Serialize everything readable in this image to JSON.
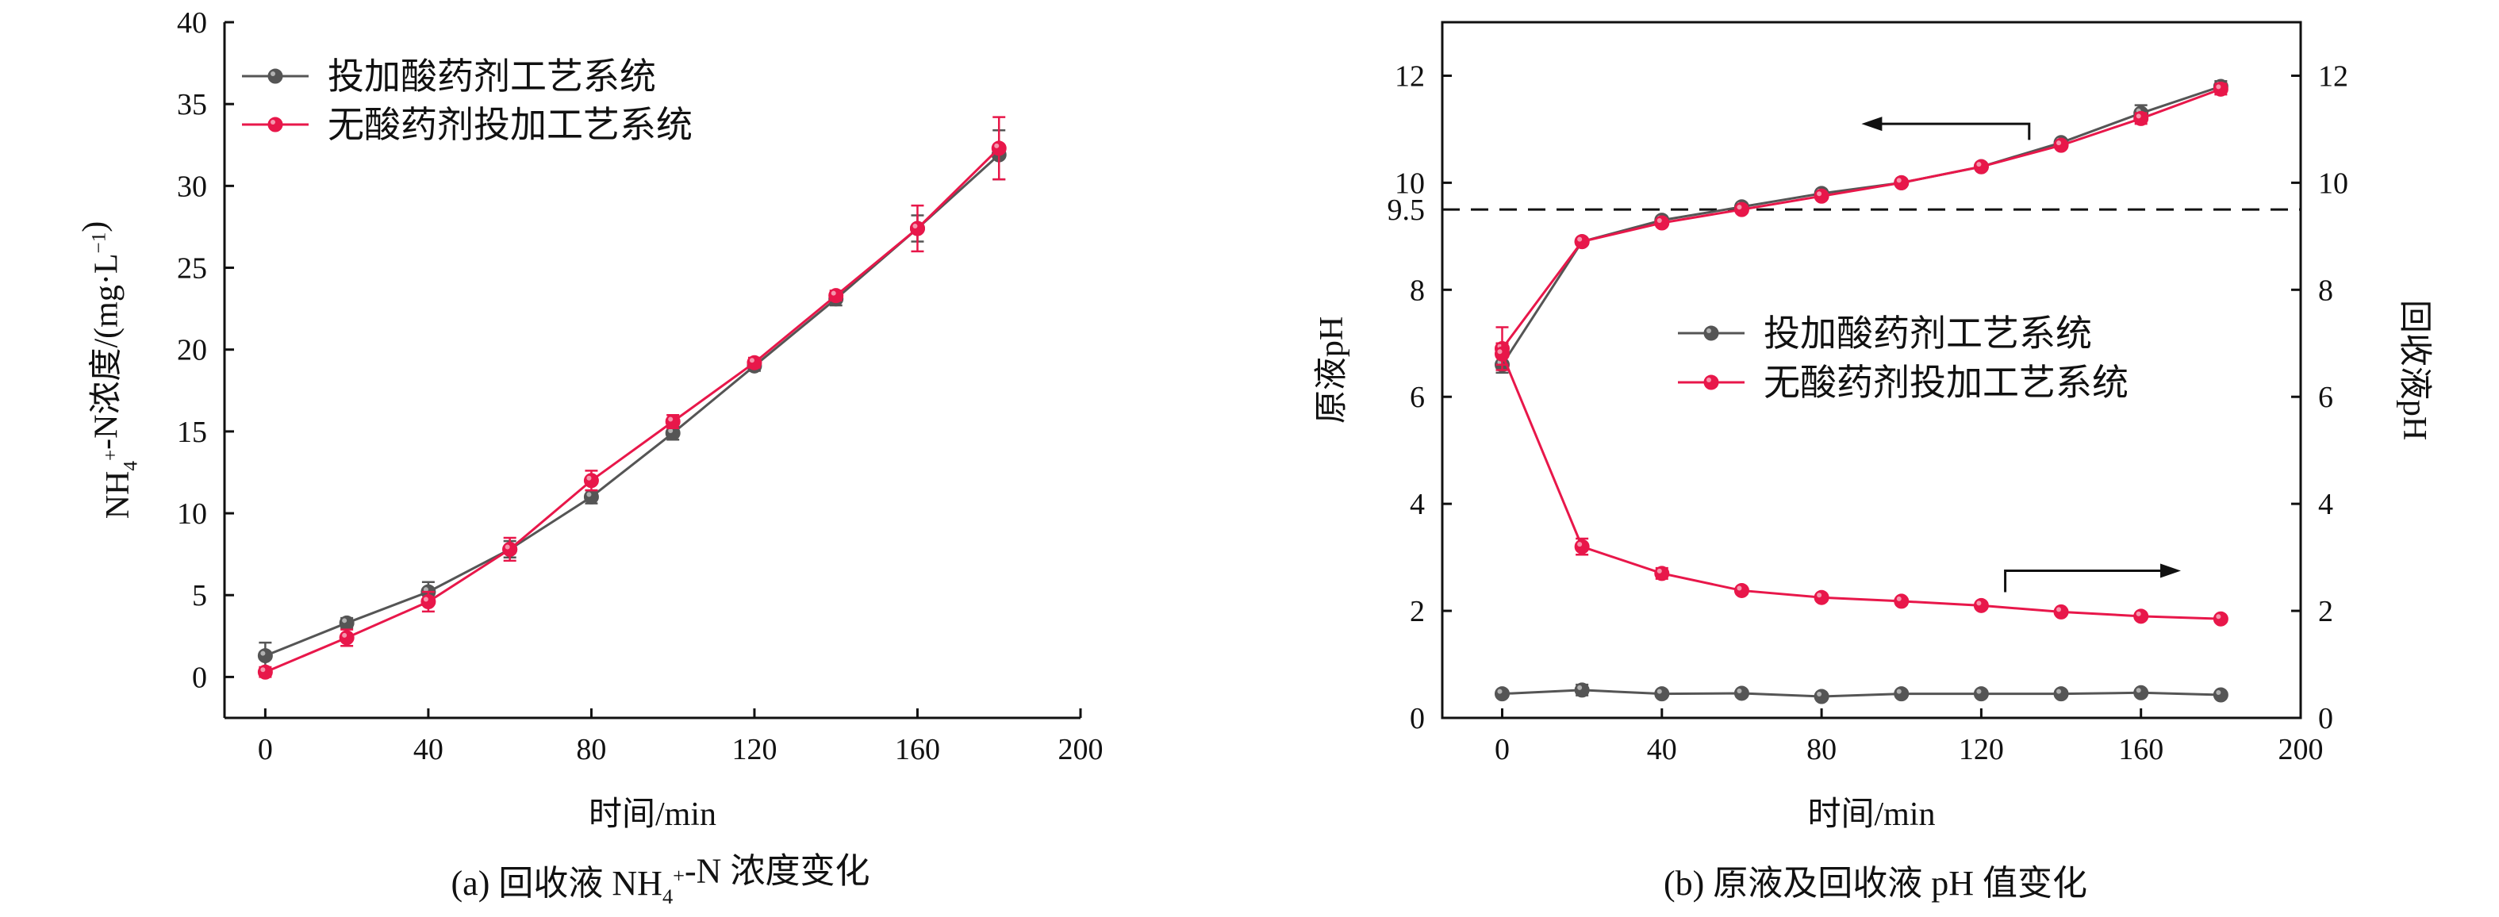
{
  "chart_data": [
    {
      "type": "line",
      "caption": "(a) 回收液 NH4+-N 浓度变化",
      "xlabel": "时间/min",
      "ylabel": "NH4+-N浓度/(mg·L−1)",
      "xlim": [
        -10,
        200
      ],
      "ylim": [
        -2.5,
        40
      ],
      "xticks": [
        0,
        40,
        80,
        120,
        160,
        200
      ],
      "yticks": [
        0,
        5,
        10,
        15,
        20,
        25,
        30,
        35,
        40
      ],
      "legend_position": "top-left",
      "x": [
        0,
        20,
        40,
        60,
        80,
        100,
        120,
        140,
        160,
        180
      ],
      "series": [
        {
          "name": "投加酸药剂工艺系统",
          "color": "#555555",
          "values": [
            1.3,
            3.3,
            5.2,
            7.8,
            11.0,
            14.9,
            19.0,
            23.1,
            27.4,
            31.9
          ],
          "errors": [
            0.8,
            0.3,
            0.6,
            0.5,
            0.4,
            0.4,
            0.3,
            0.4,
            0.8,
            1.5
          ]
        },
        {
          "name": "无酸药剂投加工艺系统",
          "color": "#e8174a",
          "values": [
            0.3,
            2.4,
            4.6,
            7.8,
            12.0,
            15.6,
            19.2,
            23.3,
            27.4,
            32.3
          ],
          "errors": [
            0.3,
            0.5,
            0.6,
            0.7,
            0.6,
            0.4,
            0.3,
            0.3,
            1.4,
            1.9
          ]
        }
      ]
    },
    {
      "type": "line",
      "caption": "(b) 原液及回收液 pH 值变化",
      "xlabel": "时间/min",
      "ylabel_left": "原液pH",
      "ylabel_right": "回收液pH",
      "xlim": [
        -15,
        200
      ],
      "ylim": [
        0,
        13
      ],
      "xticks": [
        0,
        40,
        80,
        120,
        160,
        200
      ],
      "yticks": [
        0,
        2,
        4,
        6,
        8,
        10,
        12
      ],
      "extra_tick_label": "9.5",
      "reference_line": 9.5,
      "legend_position": "center",
      "x": [
        0,
        20,
        40,
        60,
        80,
        100,
        120,
        140,
        160,
        180
      ],
      "series": [
        {
          "name": "投加酸药剂工艺系统",
          "group": "原液",
          "color": "#555555",
          "values": [
            6.6,
            8.9,
            9.3,
            9.55,
            9.8,
            10.0,
            10.3,
            10.75,
            11.3,
            11.8
          ],
          "errors": [
            0.15,
            0.05,
            0.05,
            0.05,
            0.05,
            0.05,
            0.05,
            0.05,
            0.15,
            0.1
          ]
        },
        {
          "name": "无酸药剂投加工艺系统",
          "group": "原液",
          "color": "#e8174a",
          "values": [
            6.9,
            8.9,
            9.25,
            9.5,
            9.75,
            10.0,
            10.3,
            10.7,
            11.2,
            11.75
          ],
          "errors": [
            0.4,
            0.05,
            0.05,
            0.05,
            0.05,
            0.05,
            0.05,
            0.05,
            0.1,
            0.1
          ]
        },
        {
          "group": "回收液",
          "color": "#555555",
          "values": [
            0.45,
            0.52,
            0.45,
            0.46,
            0.4,
            0.45,
            0.45,
            0.45,
            0.47,
            0.43
          ],
          "errors": [
            0.03,
            0.1,
            0.03,
            0.03,
            0.03,
            0.03,
            0.03,
            0.03,
            0.03,
            0.03
          ]
        },
        {
          "group": "回收液",
          "color": "#e8174a",
          "values": [
            6.8,
            3.2,
            2.7,
            2.38,
            2.25,
            2.18,
            2.1,
            1.98,
            1.9,
            1.85
          ],
          "errors": [
            0.2,
            0.15,
            0.1,
            0.05,
            0.05,
            0.05,
            0.05,
            0.05,
            0.05,
            0.05
          ]
        }
      ],
      "arrows": [
        {
          "points_to": "left",
          "near_y": 11.1
        },
        {
          "points_to": "right",
          "near_y": 2.7
        }
      ]
    }
  ]
}
